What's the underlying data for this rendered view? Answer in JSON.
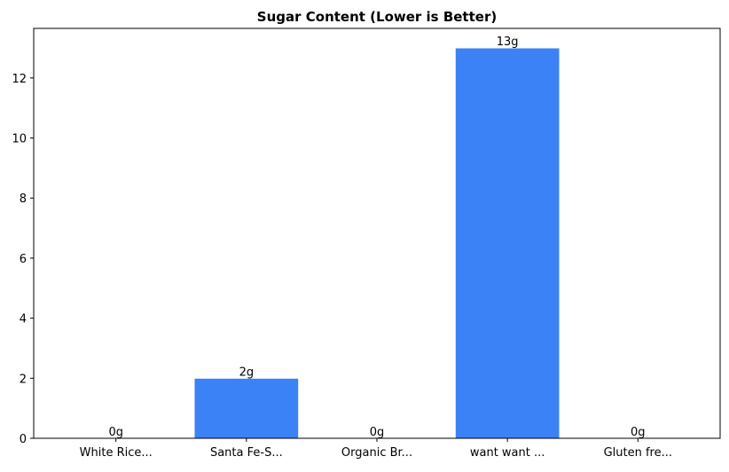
{
  "chart_data": {
    "type": "bar",
    "title": "Sugar Content (Lower is Better)",
    "xlabel": "",
    "ylabel": "",
    "categories": [
      "White Rice...",
      "Santa Fe-S...",
      "Organic Br...",
      "want want ...",
      "Gluten fre..."
    ],
    "values": [
      0,
      2,
      0,
      13,
      0
    ],
    "data_labels": [
      "0g",
      "2g",
      "0g",
      "13g",
      "0g"
    ],
    "ylim": [
      0,
      13.65
    ],
    "yticks": [
      0,
      2,
      4,
      6,
      8,
      10,
      12
    ],
    "grid": false,
    "bar_color": "#3b82f6",
    "bar_edge_color": "#ffffff"
  }
}
